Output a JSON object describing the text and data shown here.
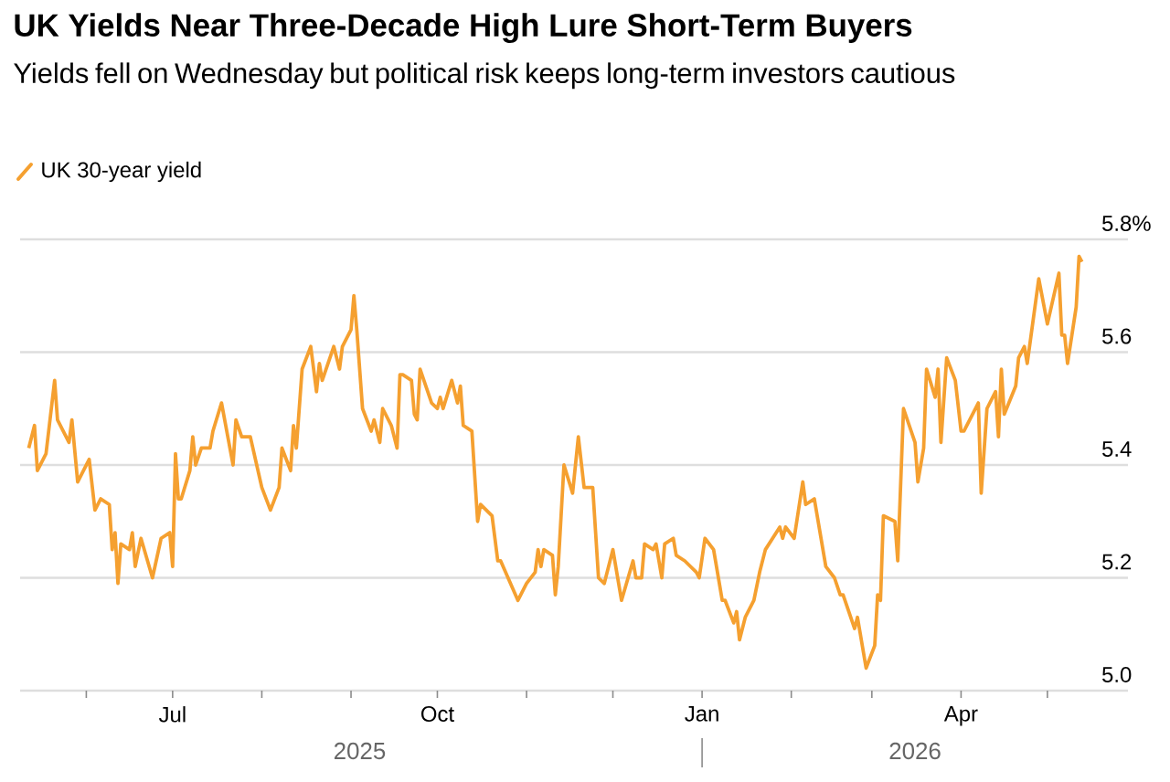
{
  "chart_data": {
    "type": "line",
    "title": "UK Yields Near Three-Decade High Lure Short-Term Buyers",
    "subtitle": "Yields fell on Wednesday but political risk keeps long-term investors cautious",
    "xlim": [
      "2025-05-09",
      "2026-05-29"
    ],
    "xticks": [
      {
        "value": "2025-06-01",
        "label": null
      },
      {
        "value": "2025-07-01",
        "label": "Jul"
      },
      {
        "value": "2025-08-01",
        "label": null
      },
      {
        "value": "2025-09-01",
        "label": null
      },
      {
        "value": "2025-10-01",
        "label": "Oct"
      },
      {
        "value": "2025-11-01",
        "label": null
      },
      {
        "value": "2025-12-01",
        "label": null
      },
      {
        "value": "2026-01-01",
        "label": "Jan"
      },
      {
        "value": "2026-02-01",
        "label": null
      },
      {
        "value": "2026-03-01",
        "label": null
      },
      {
        "value": "2026-04-01",
        "label": "Apr"
      },
      {
        "value": "2026-05-01",
        "label": null
      }
    ],
    "ylim": [
      5.0,
      5.8
    ],
    "yticks": [
      {
        "value": 5.0,
        "label": "5.0"
      },
      {
        "value": 5.2,
        "label": "5.2"
      },
      {
        "value": 5.4,
        "label": "5.4"
      },
      {
        "value": 5.6,
        "label": "5.6"
      },
      {
        "value": 5.8,
        "label": "5.8%"
      }
    ],
    "grid": "y",
    "legend": "top left",
    "annotations": [
      "2025",
      "2026"
    ],
    "series": [
      {
        "name": "UK 30-year yield",
        "color": "#f5a030",
        "x": [
          "2025-05-12",
          "2025-05-14",
          "2025-05-15",
          "2025-05-18",
          "2025-05-21",
          "2025-05-22",
          "2025-05-26",
          "2025-05-27",
          "2025-05-29",
          "2025-06-02",
          "2025-06-04",
          "2025-06-06",
          "2025-06-09",
          "2025-06-10",
          "2025-06-11",
          "2025-06-12",
          "2025-06-13",
          "2025-06-16",
          "2025-06-17",
          "2025-06-18",
          "2025-06-20",
          "2025-06-24",
          "2025-06-27",
          "2025-06-30",
          "2025-07-01",
          "2025-07-02",
          "2025-07-03",
          "2025-07-04",
          "2025-07-07",
          "2025-07-08",
          "2025-07-09",
          "2025-07-11",
          "2025-07-14",
          "2025-07-15",
          "2025-07-18",
          "2025-07-22",
          "2025-07-23",
          "2025-07-25",
          "2025-07-28",
          "2025-08-01",
          "2025-08-04",
          "2025-08-07",
          "2025-08-08",
          "2025-08-11",
          "2025-08-12",
          "2025-08-13",
          "2025-08-15",
          "2025-08-18",
          "2025-08-20",
          "2025-08-21",
          "2025-08-22",
          "2025-08-26",
          "2025-08-28",
          "2025-08-29",
          "2025-09-01",
          "2025-09-02",
          "2025-09-03",
          "2025-09-05",
          "2025-09-08",
          "2025-09-09",
          "2025-09-11",
          "2025-09-12",
          "2025-09-15",
          "2025-09-17",
          "2025-09-18",
          "2025-09-19",
          "2025-09-22",
          "2025-09-23",
          "2025-09-24",
          "2025-09-25",
          "2025-09-29",
          "2025-10-01",
          "2025-10-02",
          "2025-10-03",
          "2025-10-06",
          "2025-10-08",
          "2025-10-09",
          "2025-10-10",
          "2025-10-13",
          "2025-10-15",
          "2025-10-16",
          "2025-10-20",
          "2025-10-22",
          "2025-10-23",
          "2025-10-29",
          "2025-11-01",
          "2025-11-04",
          "2025-11-05",
          "2025-11-06",
          "2025-11-07",
          "2025-11-10",
          "2025-11-11",
          "2025-11-12",
          "2025-11-14",
          "2025-11-17",
          "2025-11-19",
          "2025-11-21",
          "2025-11-24",
          "2025-11-26",
          "2025-11-28",
          "2025-12-01",
          "2025-12-04",
          "2025-12-08",
          "2025-12-09",
          "2025-12-11",
          "2025-12-12",
          "2025-12-15",
          "2025-12-16",
          "2025-12-18",
          "2025-12-19",
          "2025-12-22",
          "2025-12-23",
          "2025-12-26",
          "2025-12-30",
          "2025-12-31",
          "2026-01-02",
          "2026-01-05",
          "2026-01-07",
          "2026-01-08",
          "2026-01-09",
          "2026-01-12",
          "2026-01-13",
          "2026-01-14",
          "2026-01-16",
          "2026-01-19",
          "2026-01-21",
          "2026-01-23",
          "2026-01-28",
          "2026-01-29",
          "2026-01-30",
          "2026-02-02",
          "2026-02-05",
          "2026-02-06",
          "2026-02-09",
          "2026-02-11",
          "2026-02-13",
          "2026-02-16",
          "2026-02-18",
          "2026-02-19",
          "2026-02-23",
          "2026-02-24",
          "2026-02-27",
          "2026-03-02",
          "2026-03-03",
          "2026-03-04",
          "2026-03-05",
          "2026-03-09",
          "2026-03-10",
          "2026-03-12",
          "2026-03-16",
          "2026-03-17",
          "2026-03-19",
          "2026-03-20",
          "2026-03-23",
          "2026-03-24",
          "2026-03-25",
          "2026-03-27",
          "2026-03-30",
          "2026-04-01",
          "2026-04-02",
          "2026-04-07",
          "2026-04-08",
          "2026-04-10",
          "2026-04-13",
          "2026-04-14",
          "2026-04-15",
          "2026-04-16",
          "2026-04-20",
          "2026-04-21",
          "2026-04-23",
          "2026-04-24",
          "2026-04-28",
          "2026-05-01",
          "2026-05-05",
          "2026-05-06",
          "2026-05-07",
          "2026-05-08",
          "2026-05-11",
          "2026-05-12",
          "2026-05-13"
        ],
        "values": [
          5.43,
          5.47,
          5.39,
          5.42,
          5.55,
          5.48,
          5.44,
          5.48,
          5.37,
          5.41,
          5.32,
          5.34,
          5.33,
          5.25,
          5.28,
          5.19,
          5.26,
          5.25,
          5.28,
          5.22,
          5.27,
          5.2,
          5.27,
          5.28,
          5.22,
          5.42,
          5.34,
          5.34,
          5.39,
          5.45,
          5.4,
          5.43,
          5.43,
          5.46,
          5.51,
          5.4,
          5.48,
          5.45,
          5.45,
          5.36,
          5.32,
          5.36,
          5.43,
          5.39,
          5.47,
          5.43,
          5.57,
          5.61,
          5.53,
          5.58,
          5.55,
          5.61,
          5.57,
          5.61,
          5.64,
          5.7,
          5.64,
          5.5,
          5.46,
          5.48,
          5.44,
          5.5,
          5.47,
          5.43,
          5.56,
          5.56,
          5.55,
          5.49,
          5.48,
          5.57,
          5.51,
          5.5,
          5.52,
          5.5,
          5.55,
          5.51,
          5.54,
          5.47,
          5.46,
          5.3,
          5.33,
          5.31,
          5.23,
          5.23,
          5.16,
          5.19,
          5.21,
          5.25,
          5.22,
          5.25,
          5.24,
          5.17,
          5.22,
          5.4,
          5.35,
          5.45,
          5.36,
          5.36,
          5.2,
          5.19,
          5.25,
          5.16,
          5.23,
          5.2,
          5.2,
          5.26,
          5.25,
          5.26,
          5.2,
          5.26,
          5.27,
          5.24,
          5.23,
          5.21,
          5.2,
          5.27,
          5.25,
          5.19,
          5.16,
          5.16,
          5.12,
          5.14,
          5.09,
          5.13,
          5.16,
          5.21,
          5.25,
          5.29,
          5.27,
          5.29,
          5.27,
          5.37,
          5.33,
          5.34,
          5.28,
          5.22,
          5.2,
          5.17,
          5.17,
          5.11,
          5.13,
          5.04,
          5.08,
          5.17,
          5.16,
          5.31,
          5.3,
          5.23,
          5.5,
          5.44,
          5.37,
          5.43,
          5.57,
          5.52,
          5.57,
          5.44,
          5.59,
          5.55,
          5.46,
          5.46,
          5.51,
          5.35,
          5.5,
          5.53,
          5.45,
          5.57,
          5.49,
          5.54,
          5.59,
          5.61,
          5.58,
          5.73,
          5.65,
          5.74,
          5.63,
          5.63,
          5.58,
          5.68,
          5.77,
          5.76
        ]
      }
    ]
  }
}
